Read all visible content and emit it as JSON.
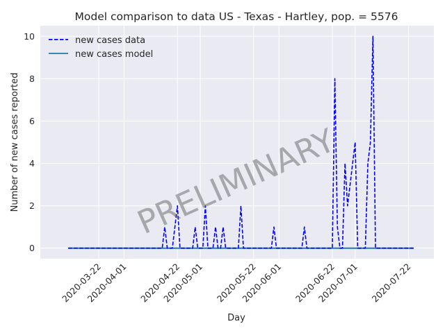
{
  "chart_data": {
    "type": "line",
    "title": "Model comparison to data US - Texas - Hartley, pop. = 5576",
    "xlabel": "Day",
    "ylabel": "Number of new cases reported",
    "x_range": [
      "2020-03-10",
      "2020-07-24"
    ],
    "ylim": [
      -0.5,
      10.5
    ],
    "x_ticks": [
      "2020-03-22",
      "2020-04-01",
      "2020-04-22",
      "2020-05-01",
      "2020-05-22",
      "2020-06-01",
      "2020-06-22",
      "2020-07-01",
      "2020-07-22"
    ],
    "y_ticks": [
      0,
      2,
      4,
      6,
      8,
      10
    ],
    "grid": true,
    "legend_position": "top-left",
    "watermark": "PRELIMINARY",
    "series": [
      {
        "name": "new cases data",
        "style": "dashed",
        "color": "#0000ff",
        "points": [
          [
            "2020-03-10",
            0
          ],
          [
            "2020-04-16",
            0
          ],
          [
            "2020-04-17",
            1
          ],
          [
            "2020-04-18",
            0
          ],
          [
            "2020-04-20",
            0
          ],
          [
            "2020-04-22",
            2
          ],
          [
            "2020-04-23",
            0
          ],
          [
            "2020-04-28",
            0
          ],
          [
            "2020-04-29",
            1
          ],
          [
            "2020-04-30",
            0
          ],
          [
            "2020-05-02",
            0
          ],
          [
            "2020-05-03",
            2
          ],
          [
            "2020-05-04",
            0
          ],
          [
            "2020-05-06",
            0
          ],
          [
            "2020-05-07",
            1
          ],
          [
            "2020-05-08",
            0
          ],
          [
            "2020-05-09",
            0
          ],
          [
            "2020-05-10",
            1
          ],
          [
            "2020-05-11",
            0
          ],
          [
            "2020-05-16",
            0
          ],
          [
            "2020-05-17",
            2
          ],
          [
            "2020-05-18",
            0
          ],
          [
            "2020-05-29",
            0
          ],
          [
            "2020-05-30",
            1
          ],
          [
            "2020-05-31",
            0
          ],
          [
            "2020-06-10",
            0
          ],
          [
            "2020-06-11",
            1
          ],
          [
            "2020-06-12",
            0
          ],
          [
            "2020-06-22",
            0
          ],
          [
            "2020-06-23",
            8
          ],
          [
            "2020-06-24",
            1
          ],
          [
            "2020-06-25",
            0
          ],
          [
            "2020-06-26",
            0
          ],
          [
            "2020-06-27",
            4
          ],
          [
            "2020-06-28",
            2
          ],
          [
            "2020-06-29",
            3
          ],
          [
            "2020-06-30",
            4
          ],
          [
            "2020-07-01",
            5
          ],
          [
            "2020-07-02",
            0
          ],
          [
            "2020-07-05",
            0
          ],
          [
            "2020-07-06",
            4
          ],
          [
            "2020-07-07",
            5
          ],
          [
            "2020-07-08",
            10
          ],
          [
            "2020-07-09",
            0
          ],
          [
            "2020-07-24",
            0
          ]
        ]
      },
      {
        "name": "new cases model",
        "style": "solid",
        "color": "#1f77b4",
        "points": [
          [
            "2020-03-10",
            0
          ],
          [
            "2020-07-24",
            0
          ]
        ]
      }
    ]
  },
  "colors": {
    "plot_background": "#eaeaf2",
    "grid": "#ffffff",
    "data_line": "#0000ff",
    "model_line": "#1f77b4"
  }
}
